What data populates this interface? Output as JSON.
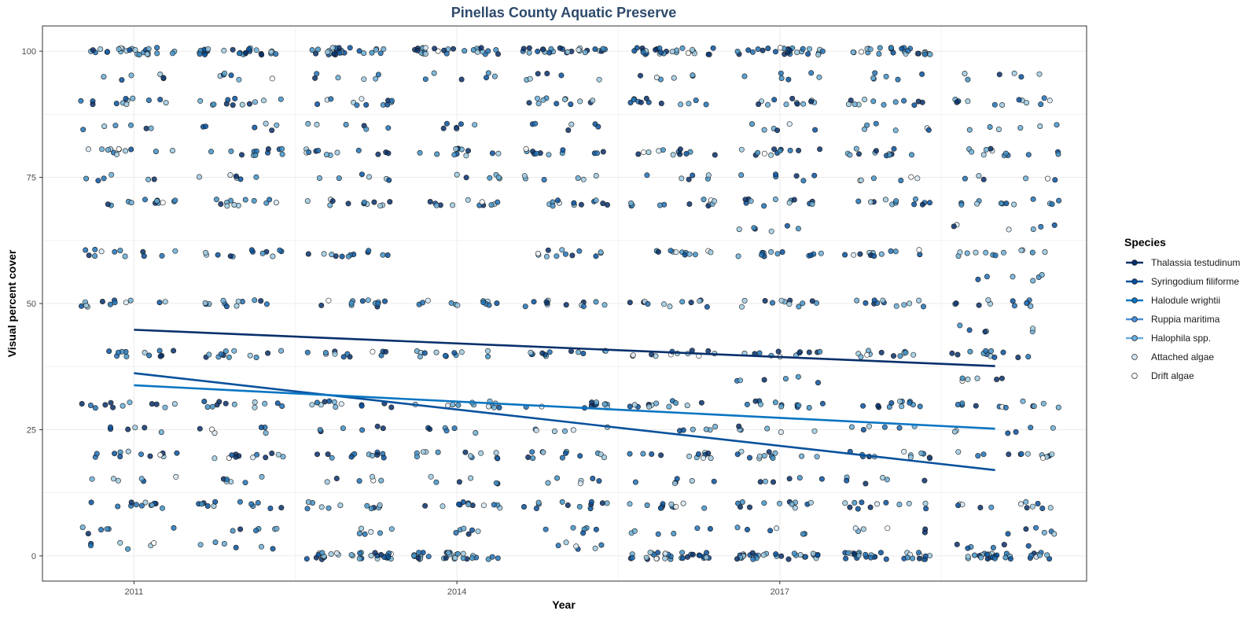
{
  "chart_data": {
    "type": "scatter",
    "title": "Pinellas County Aquatic Preserve",
    "xlabel": "Year",
    "ylabel": "Visual percent cover",
    "x_ticks": [
      "2011",
      "2014",
      "2017"
    ],
    "x_range": [
      2010.15,
      2019.85
    ],
    "y_ticks": [
      0,
      25,
      50,
      75,
      100
    ],
    "ylim": [
      -5,
      105
    ],
    "grid": true,
    "legend": {
      "title": "Species",
      "placement": "right",
      "entries": [
        {
          "name": "Thalassia testudinum",
          "color": "#08306b",
          "style": "line"
        },
        {
          "name": "Syringodium filiforme",
          "color": "#08519c",
          "style": "line"
        },
        {
          "name": "Halodule wrightii",
          "color": "#0a75c2",
          "style": "line"
        },
        {
          "name": "Ruppia maritima",
          "color": "#4a90d9",
          "style": "line"
        },
        {
          "name": "Halophila spp.",
          "color": "#6aaee0",
          "style": "line"
        },
        {
          "name": "Attached algae",
          "color": "#d6e8f5",
          "style": "point"
        },
        {
          "name": "Drift algae",
          "color": "#ffffff",
          "style": "point"
        }
      ]
    },
    "trend_lines": [
      {
        "name": "Thalassia testudinum",
        "color": "#08306b",
        "x": [
          2011.0,
          2019.0
        ],
        "y": [
          44.8,
          37.6
        ]
      },
      {
        "name": "Syringodium filiforme",
        "color": "#08519c",
        "x": [
          2011.0,
          2019.0
        ],
        "y": [
          36.2,
          17.0
        ]
      },
      {
        "name": "Halodule wrightii",
        "color": "#0a75c2",
        "x": [
          2011.0,
          2019.0
        ],
        "y": [
          33.8,
          25.2
        ]
      }
    ],
    "point_clusters": [
      {
        "x_range": [
          2010.5,
          2011.4
        ],
        "y_levels": [
          100,
          95,
          90,
          85,
          80,
          75,
          70,
          60,
          50,
          40,
          30,
          25,
          20,
          15,
          10,
          5,
          2
        ]
      },
      {
        "x_range": [
          2011.6,
          2012.4
        ],
        "y_levels": [
          100,
          95,
          90,
          85,
          80,
          75,
          70,
          60,
          50,
          40,
          30,
          25,
          20,
          15,
          10,
          5,
          2
        ]
      },
      {
        "x_range": [
          2012.6,
          2013.4
        ],
        "y_levels": [
          100,
          95,
          90,
          85,
          80,
          75,
          70,
          60,
          50,
          40,
          30,
          25,
          20,
          15,
          10,
          5,
          0
        ]
      },
      {
        "x_range": [
          2013.6,
          2014.4
        ],
        "y_levels": [
          100,
          95,
          85,
          80,
          75,
          70,
          50,
          40,
          30,
          25,
          20,
          15,
          10,
          5,
          0
        ]
      },
      {
        "x_range": [
          2014.6,
          2015.4
        ],
        "y_levels": [
          100,
          95,
          90,
          85,
          80,
          75,
          70,
          60,
          50,
          40,
          30,
          25,
          20,
          15,
          10,
          5,
          2
        ]
      },
      {
        "x_range": [
          2015.6,
          2016.4
        ],
        "y_levels": [
          100,
          95,
          90,
          80,
          75,
          70,
          60,
          50,
          40,
          30,
          25,
          20,
          15,
          10,
          5,
          0
        ]
      },
      {
        "x_range": [
          2016.6,
          2017.4
        ],
        "y_levels": [
          100,
          95,
          90,
          85,
          80,
          75,
          70,
          65,
          60,
          50,
          40,
          35,
          30,
          25,
          20,
          15,
          10,
          5,
          0
        ]
      },
      {
        "x_range": [
          2017.6,
          2018.4
        ],
        "y_levels": [
          100,
          95,
          90,
          85,
          80,
          75,
          70,
          60,
          50,
          40,
          30,
          25,
          20,
          15,
          10,
          5,
          0
        ]
      },
      {
        "x_range": [
          2018.6,
          2019.6
        ],
        "y_levels": [
          95,
          90,
          85,
          80,
          75,
          70,
          65,
          60,
          55,
          50,
          45,
          40,
          35,
          30,
          25,
          20,
          10,
          5,
          2,
          0
        ]
      }
    ]
  },
  "colors": {
    "point_palette": [
      "#08306b",
      "#08519c",
      "#2171b5",
      "#4292c6",
      "#6baed6",
      "#9ecae1"
    ],
    "title": "#2e4a6b",
    "grid": "#ebebeb",
    "panel_border": "#333333"
  }
}
